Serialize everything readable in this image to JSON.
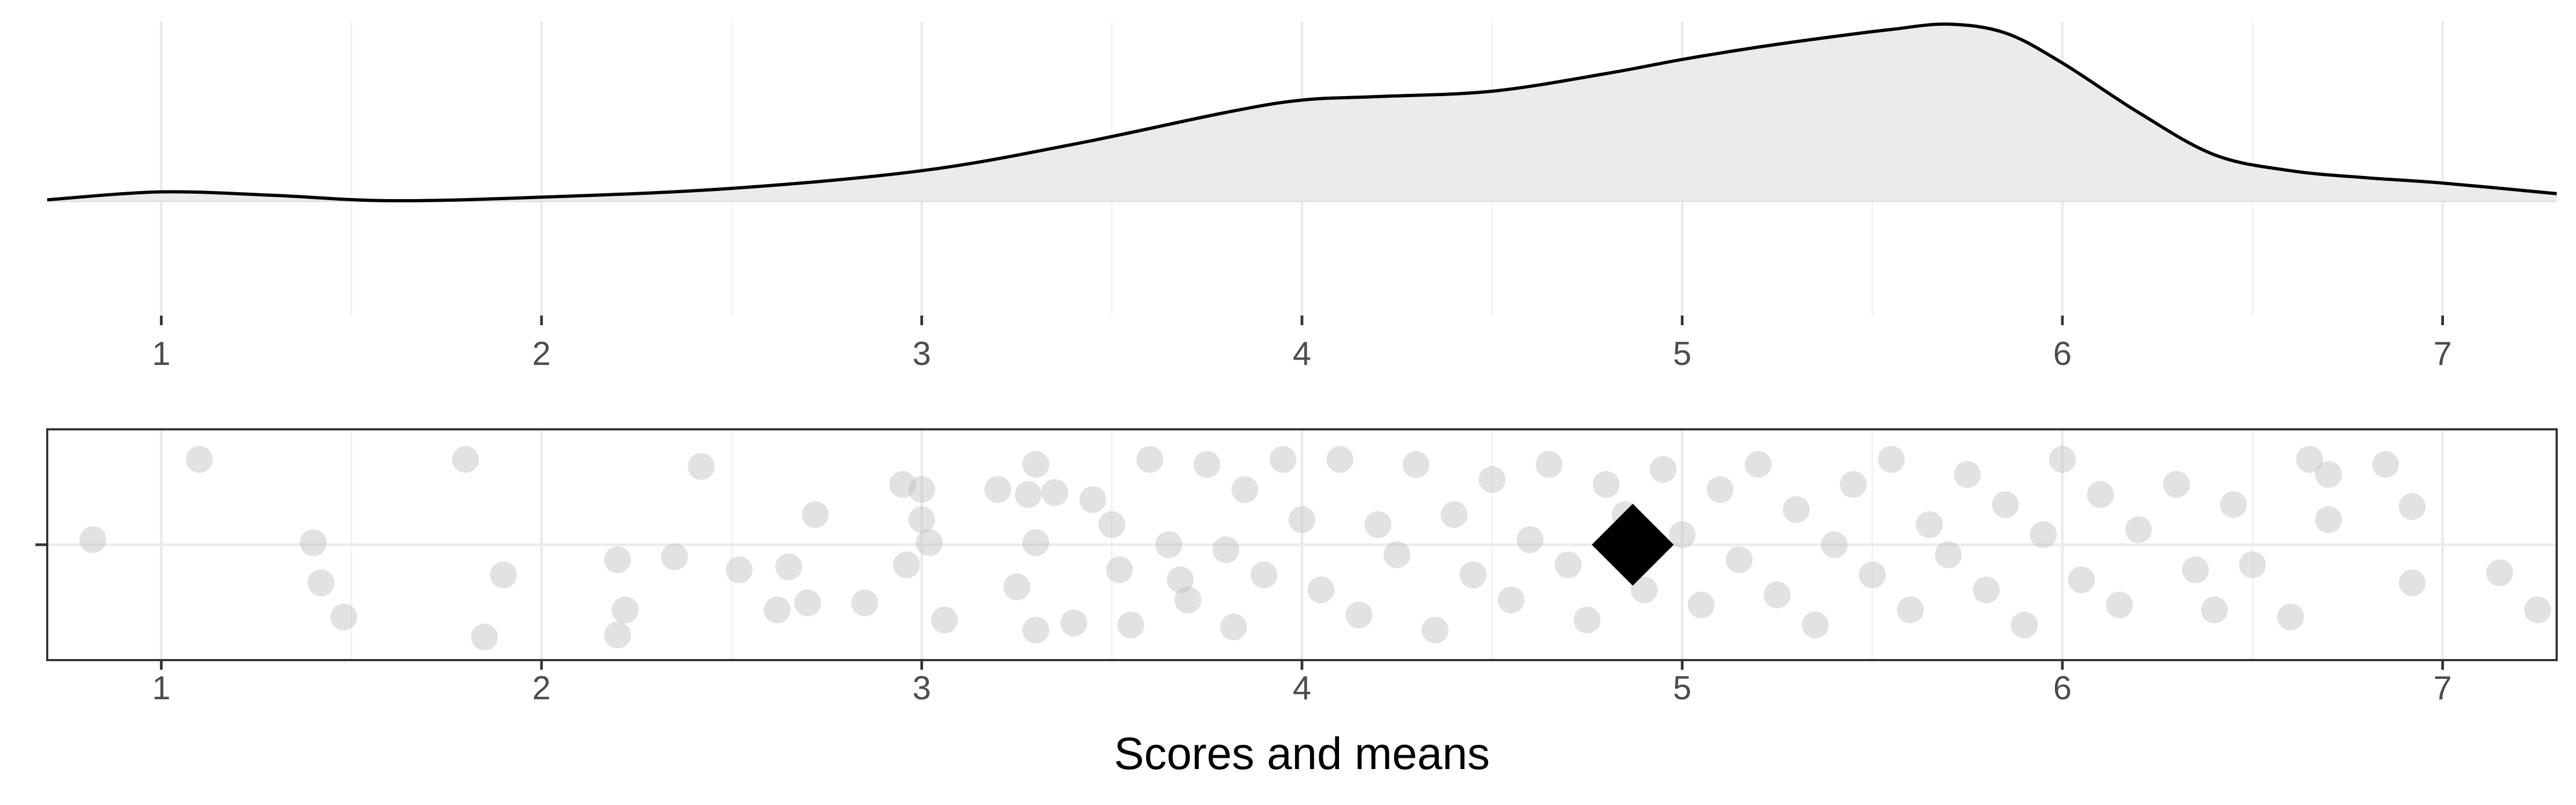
{
  "chart_data": [
    {
      "type": "area",
      "subtype": "density",
      "x": [
        0.7,
        1.0,
        1.3,
        1.6,
        2.0,
        2.5,
        3.0,
        3.4,
        3.8,
        4.0,
        4.2,
        4.5,
        4.8,
        5.0,
        5.2,
        5.4,
        5.55,
        5.7,
        5.85,
        6.0,
        6.2,
        6.4,
        6.6,
        6.8,
        7.0,
        7.3
      ],
      "y": [
        0.005,
        0.05,
        0.03,
        0.0,
        0.02,
        0.07,
        0.17,
        0.32,
        0.5,
        0.57,
        0.59,
        0.62,
        0.72,
        0.8,
        0.87,
        0.93,
        0.97,
        1.0,
        0.95,
        0.78,
        0.5,
        0.26,
        0.17,
        0.13,
        0.1,
        0.04
      ],
      "fill_color": "#ebebeb",
      "line_color": "#000000",
      "xlim": [
        0.7,
        7.3
      ],
      "x_ticks": [
        "1",
        "2",
        "3",
        "4",
        "5",
        "6",
        "7"
      ],
      "grid": true
    },
    {
      "type": "scatter",
      "subtype": "jitter",
      "xlabel": "Scores and means",
      "xlim": [
        0.7,
        7.3
      ],
      "x_ticks": [
        "1",
        "2",
        "3",
        "4",
        "5",
        "6",
        "7"
      ],
      "point_color": "#bfbfbf",
      "point_opacity": 0.45,
      "points": [
        [
          0.82,
          0.05
        ],
        [
          1.1,
          0.85
        ],
        [
          1.4,
          0.02
        ],
        [
          1.42,
          -0.38
        ],
        [
          1.48,
          -0.72
        ],
        [
          1.8,
          0.85
        ],
        [
          1.85,
          -0.92
        ],
        [
          1.9,
          -0.3
        ],
        [
          2.2,
          -0.15
        ],
        [
          2.22,
          -0.65
        ],
        [
          2.2,
          -0.9
        ],
        [
          2.35,
          -0.12
        ],
        [
          2.42,
          0.78
        ],
        [
          2.52,
          -0.25
        ],
        [
          2.62,
          -0.65
        ],
        [
          2.65,
          -0.22
        ],
        [
          2.7,
          -0.58
        ],
        [
          2.72,
          0.3
        ],
        [
          2.85,
          -0.58
        ],
        [
          2.95,
          0.6
        ],
        [
          2.96,
          -0.2
        ],
        [
          3.0,
          0.25
        ],
        [
          3.0,
          0.55
        ],
        [
          3.02,
          0.02
        ],
        [
          3.06,
          -0.75
        ],
        [
          3.2,
          0.55
        ],
        [
          3.25,
          -0.42
        ],
        [
          3.28,
          0.5
        ],
        [
          3.3,
          0.8
        ],
        [
          3.3,
          0.02
        ],
        [
          3.3,
          -0.85
        ],
        [
          3.35,
          0.52
        ],
        [
          3.4,
          -0.78
        ],
        [
          3.45,
          0.45
        ],
        [
          3.5,
          0.2
        ],
        [
          3.52,
          -0.25
        ],
        [
          3.55,
          -0.8
        ],
        [
          3.6,
          0.85
        ],
        [
          3.65,
          0.0
        ],
        [
          3.68,
          -0.35
        ],
        [
          3.7,
          -0.55
        ],
        [
          3.75,
          0.8
        ],
        [
          3.8,
          -0.05
        ],
        [
          3.82,
          -0.82
        ],
        [
          3.85,
          0.55
        ],
        [
          3.9,
          -0.3
        ],
        [
          3.95,
          0.85
        ],
        [
          4.0,
          0.25
        ],
        [
          4.05,
          -0.45
        ],
        [
          4.1,
          0.85
        ],
        [
          4.15,
          -0.7
        ],
        [
          4.2,
          0.2
        ],
        [
          4.25,
          -0.1
        ],
        [
          4.3,
          0.8
        ],
        [
          4.35,
          -0.85
        ],
        [
          4.4,
          0.3
        ],
        [
          4.45,
          -0.3
        ],
        [
          4.5,
          0.65
        ],
        [
          4.55,
          -0.55
        ],
        [
          4.6,
          0.05
        ],
        [
          4.65,
          0.8
        ],
        [
          4.7,
          -0.2
        ],
        [
          4.75,
          -0.75
        ],
        [
          4.8,
          0.6
        ],
        [
          4.85,
          0.3
        ],
        [
          4.9,
          -0.45
        ],
        [
          4.95,
          0.75
        ],
        [
          5.0,
          0.1
        ],
        [
          5.05,
          -0.6
        ],
        [
          5.1,
          0.55
        ],
        [
          5.15,
          -0.15
        ],
        [
          5.2,
          0.8
        ],
        [
          5.25,
          -0.5
        ],
        [
          5.3,
          0.35
        ],
        [
          5.35,
          -0.8
        ],
        [
          5.4,
          0.0
        ],
        [
          5.45,
          0.6
        ],
        [
          5.5,
          -0.3
        ],
        [
          5.55,
          0.85
        ],
        [
          5.6,
          -0.65
        ],
        [
          5.65,
          0.2
        ],
        [
          5.7,
          -0.1
        ],
        [
          5.75,
          0.7
        ],
        [
          5.8,
          -0.45
        ],
        [
          5.85,
          0.4
        ],
        [
          5.9,
          -0.8
        ],
        [
          5.95,
          0.1
        ],
        [
          6.0,
          0.85
        ],
        [
          6.05,
          -0.35
        ],
        [
          6.1,
          0.5
        ],
        [
          6.15,
          -0.6
        ],
        [
          6.2,
          0.15
        ],
        [
          6.3,
          0.6
        ],
        [
          6.35,
          -0.25
        ],
        [
          6.4,
          -0.65
        ],
        [
          6.45,
          0.4
        ],
        [
          6.5,
          -0.2
        ],
        [
          6.6,
          -0.72
        ],
        [
          6.65,
          0.85
        ],
        [
          6.7,
          0.25
        ],
        [
          6.7,
          0.7
        ],
        [
          6.85,
          0.8
        ],
        [
          6.92,
          0.38
        ],
        [
          6.92,
          -0.38
        ],
        [
          7.15,
          -0.28
        ],
        [
          7.25,
          -0.65
        ]
      ],
      "mean": {
        "x": 4.87,
        "y": 0.0
      },
      "mean_color": "#000000"
    }
  ]
}
